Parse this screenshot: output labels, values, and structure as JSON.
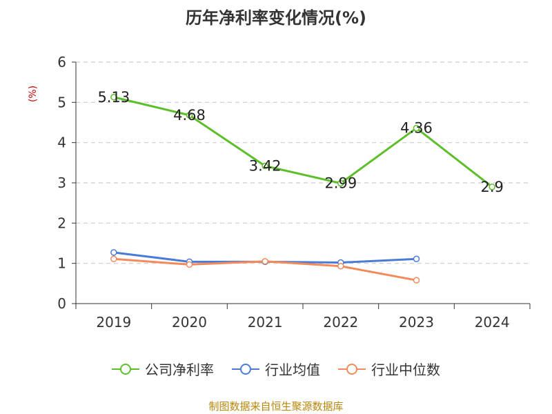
{
  "chart_data": {
    "type": "line",
    "title": "历年净利率变化情况(%)",
    "ylabel": "(%)",
    "categories": [
      "2019",
      "2020",
      "2021",
      "2022",
      "2023",
      "2024"
    ],
    "ylim": [
      0,
      6
    ],
    "yticks": [
      0,
      1,
      2,
      3,
      4,
      5,
      6
    ],
    "grid": true,
    "legend_position": "bottom",
    "series": [
      {
        "name": "公司净利率",
        "color": "#5cbf2a",
        "values": [
          5.13,
          4.68,
          3.42,
          2.99,
          4.36,
          2.9
        ],
        "labels": [
          "5.13",
          "4.68",
          "3.42",
          "2.99",
          "4.36",
          "2.9"
        ]
      },
      {
        "name": "行业均值",
        "color": "#4a7bd6",
        "values": [
          1.27,
          1.04,
          1.04,
          1.02,
          1.11,
          null
        ]
      },
      {
        "name": "行业中位数",
        "color": "#f28a5b",
        "values": [
          1.11,
          0.97,
          1.05,
          0.93,
          0.58,
          null
        ]
      }
    ]
  },
  "footer": "制图数据来自恒生聚源数据库"
}
